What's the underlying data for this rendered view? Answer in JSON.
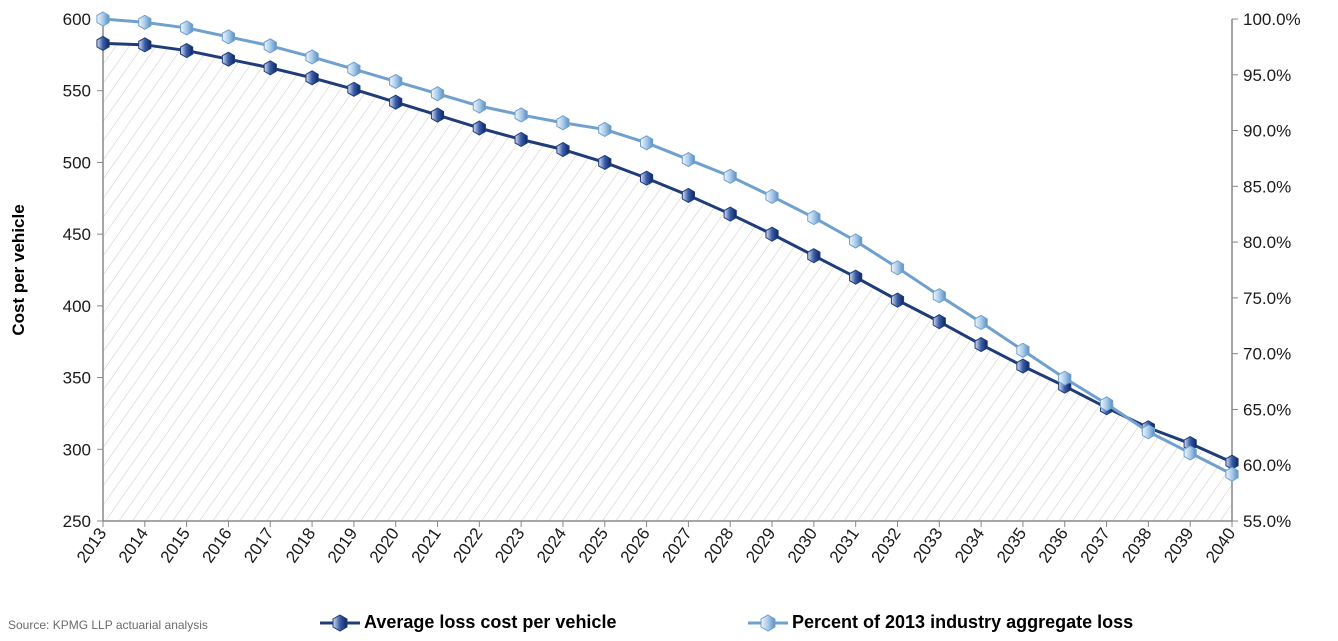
{
  "chart_data": {
    "type": "line",
    "x": [
      "2013",
      "2014",
      "2015",
      "2016",
      "2017",
      "2018",
      "2019",
      "2020",
      "2021",
      "2022",
      "2023",
      "2024",
      "2025",
      "2026",
      "2027",
      "2028",
      "2029",
      "2030",
      "2031",
      "2032",
      "2033",
      "2034",
      "2035",
      "2036",
      "2037",
      "2038",
      "2039",
      "2040"
    ],
    "ylabel": "Cost per vehicle",
    "ylim": [
      250,
      600
    ],
    "yticks": [
      250,
      300,
      350,
      400,
      450,
      500,
      550,
      600
    ],
    "y2lim": [
      55,
      100
    ],
    "y2ticks": [
      "55.0%",
      "60.0%",
      "65.0%",
      "70.0%",
      "75.0%",
      "80.0%",
      "85.0%",
      "90.0%",
      "95.0%",
      "100.0%"
    ],
    "series": [
      {
        "name": "Average loss cost per vehicle",
        "axis": "left",
        "color": "#1f3c7a",
        "values": [
          583,
          582,
          578,
          572,
          566,
          559,
          551,
          542,
          533,
          524,
          516,
          509,
          500,
          489,
          477,
          464,
          450,
          435,
          420,
          404,
          389,
          373,
          358,
          344,
          329,
          315,
          304,
          291
        ]
      },
      {
        "name": "Percent of 2013 industry aggregate loss",
        "axis": "right",
        "color": "#6fa0cf",
        "values": [
          100.0,
          99.7,
          99.2,
          98.4,
          97.6,
          96.6,
          95.5,
          94.4,
          93.3,
          92.2,
          91.4,
          90.7,
          90.1,
          88.9,
          87.4,
          85.9,
          84.1,
          82.2,
          80.1,
          77.7,
          75.2,
          72.8,
          70.3,
          67.8,
          65.5,
          63.0,
          61.1,
          59.2
        ]
      }
    ],
    "hatch": "diagonal hatch fill under left series",
    "source": "Source: KPMG LLP actuarial analysis",
    "legend_position": "bottom"
  }
}
